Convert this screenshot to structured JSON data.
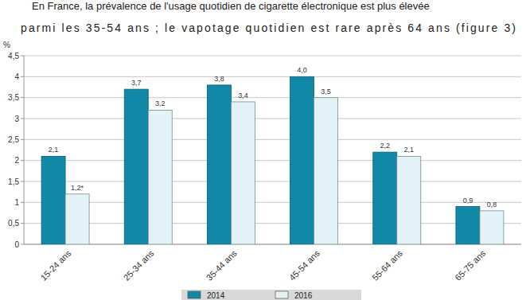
{
  "chart_data": {
    "type": "bar",
    "annotations": [
      "En France, la prévalence de l'usage quotidien de cigarette électronique est plus élevée",
      "parmi les 35-54 ans ; le vapotage quotidien est rare après 64 ans (figure 3)"
    ],
    "y_label": "%",
    "categories": [
      "15-24 ans",
      "25-34 ans",
      "35-44 ans",
      "45-54 ans",
      "55-64 ans",
      "65-75 ans"
    ],
    "series": [
      {
        "name": "2014",
        "color": "#1189a6",
        "values": [
          2.1,
          3.7,
          3.8,
          4.0,
          2.2,
          0.9
        ],
        "value_labels": [
          "2,1",
          "3,7",
          "3,8",
          "4,0",
          "2,2",
          "0,9"
        ]
      },
      {
        "name": "2016",
        "color": "#e3f2f6",
        "values": [
          1.2,
          3.2,
          3.4,
          3.5,
          2.1,
          0.8
        ],
        "value_labels": [
          "1,2*",
          "3,2",
          "3,4",
          "3,5",
          "2,1",
          "0,8"
        ]
      }
    ],
    "ylim": [
      0,
      4.5
    ],
    "yticks": [
      0,
      {
        "value": 0.5,
        "label": "0,5"
      },
      1,
      {
        "value": 1.5,
        "label": "1,5"
      },
      2,
      {
        "value": 2.5,
        "label": "2,5"
      },
      3,
      {
        "value": 3.5,
        "label": "3,5"
      },
      4,
      {
        "value": 4.5,
        "label": "4,5"
      }
    ],
    "grid": true,
    "data_labels": true,
    "legend": "bottom"
  }
}
